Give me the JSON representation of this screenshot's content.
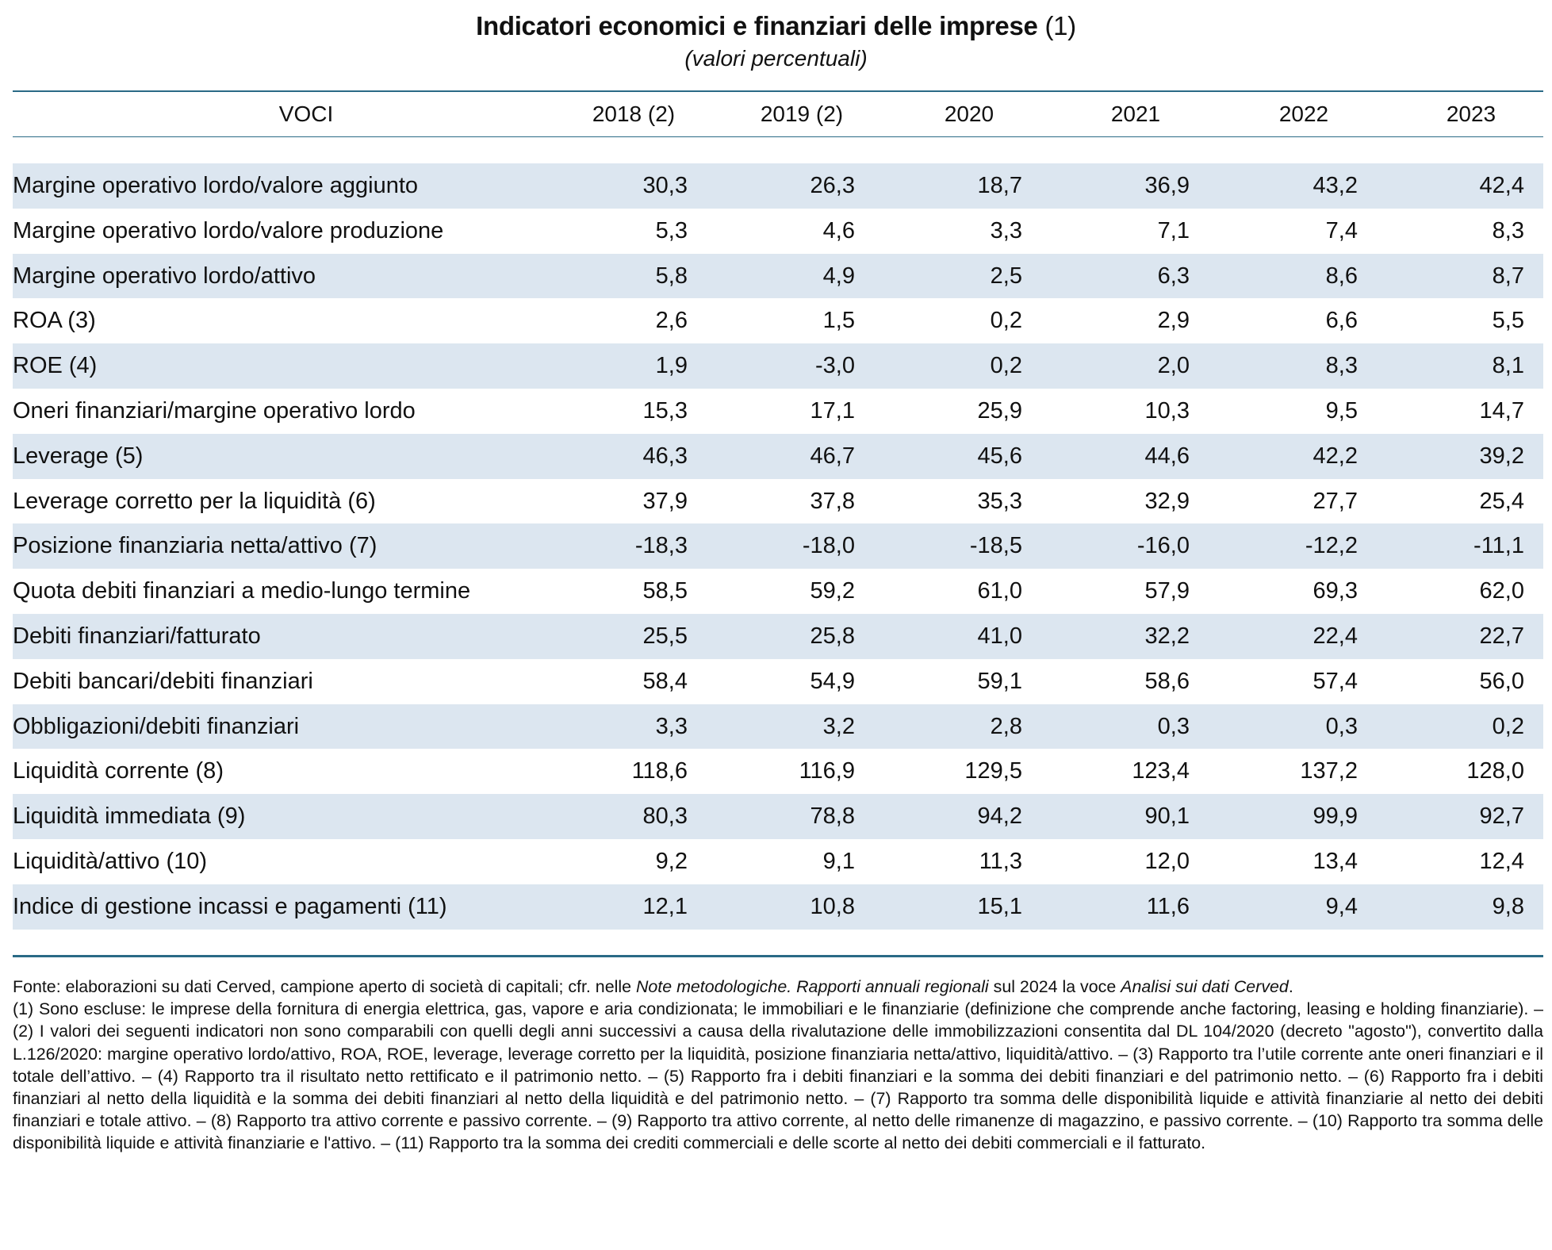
{
  "title": {
    "main": "Indicatori economici e finanziari delle imprese",
    "note": "(1)",
    "subtitle": "(valori percentuali)"
  },
  "table": {
    "columns": [
      "VOCI",
      "2018 (2)",
      "2019 (2)",
      "2020",
      "2021",
      "2022",
      "2023"
    ],
    "rows": [
      {
        "label": "Margine operativo lordo/valore aggiunto",
        "values": [
          "30,3",
          "26,3",
          "18,7",
          "36,9",
          "43,2",
          "42,4"
        ]
      },
      {
        "label": "Margine operativo lordo/valore produzione",
        "values": [
          "5,3",
          "4,6",
          "3,3",
          "7,1",
          "7,4",
          "8,3"
        ]
      },
      {
        "label": "Margine operativo lordo/attivo",
        "values": [
          "5,8",
          "4,9",
          "2,5",
          "6,3",
          "8,6",
          "8,7"
        ]
      },
      {
        "label": "ROA (3)",
        "values": [
          "2,6",
          "1,5",
          "0,2",
          "2,9",
          "6,6",
          "5,5"
        ]
      },
      {
        "label": "ROE (4)",
        "values": [
          "1,9",
          "-3,0",
          "0,2",
          "2,0",
          "8,3",
          "8,1"
        ]
      },
      {
        "label": "Oneri finanziari/margine operativo lordo",
        "values": [
          "15,3",
          "17,1",
          "25,9",
          "10,3",
          "9,5",
          "14,7"
        ]
      },
      {
        "label": "Leverage (5)",
        "values": [
          "46,3",
          "46,7",
          "45,6",
          "44,6",
          "42,2",
          "39,2"
        ]
      },
      {
        "label": "Leverage corretto per la liquidità (6)",
        "values": [
          "37,9",
          "37,8",
          "35,3",
          "32,9",
          "27,7",
          "25,4"
        ]
      },
      {
        "label": "Posizione finanziaria netta/attivo (7)",
        "values": [
          "-18,3",
          "-18,0",
          "-18,5",
          "-16,0",
          "-12,2",
          "-11,1"
        ]
      },
      {
        "label": "Quota debiti finanziari a medio-lungo termine",
        "values": [
          "58,5",
          "59,2",
          "61,0",
          "57,9",
          "69,3",
          "62,0"
        ]
      },
      {
        "label": "Debiti finanziari/fatturato",
        "values": [
          "25,5",
          "25,8",
          "41,0",
          "32,2",
          "22,4",
          "22,7"
        ]
      },
      {
        "label": "Debiti bancari/debiti finanziari",
        "values": [
          "58,4",
          "54,9",
          "59,1",
          "58,6",
          "57,4",
          "56,0"
        ]
      },
      {
        "label": "Obbligazioni/debiti finanziari",
        "values": [
          "3,3",
          "3,2",
          "2,8",
          "0,3",
          "0,3",
          "0,2"
        ]
      },
      {
        "label": "Liquidità corrente (8)",
        "values": [
          "118,6",
          "116,9",
          "129,5",
          "123,4",
          "137,2",
          "128,0"
        ]
      },
      {
        "label": "Liquidità immediata (9)",
        "values": [
          "80,3",
          "78,8",
          "94,2",
          "90,1",
          "99,9",
          "92,7"
        ]
      },
      {
        "label": "Liquidità/attivo (10)",
        "values": [
          "9,2",
          "9,1",
          "11,3",
          "12,0",
          "13,4",
          "12,4"
        ]
      },
      {
        "label": "Indice di gestione incassi e pagamenti (11)",
        "values": [
          "12,1",
          "10,8",
          "15,1",
          "11,6",
          "9,4",
          "9,8"
        ]
      }
    ]
  },
  "colors": {
    "row_shade": "#dce6f0",
    "rule": "#2a6a86"
  },
  "notes": {
    "source_prefix": "Fonte: elaborazioni su dati Cerved, campione aperto di società di capitali; cfr. nelle ",
    "source_italic1": "Note metodologiche. Rapporti annuali regionali",
    "source_mid": " sul 2024 la voce ",
    "source_italic2": "Analisi sui dati Cerved",
    "source_end": ".",
    "footnotes": "(1) Sono escluse: le imprese della fornitura di energia elettrica, gas, vapore e aria condizionata; le immobiliari e le finanziarie (definizione che comprende anche factoring, leasing e holding finanziarie). – (2) I valori dei seguenti indicatori non sono comparabili con quelli degli anni successivi a causa della rivalutazione delle immobilizzazioni consentita dal DL 104/2020 (decreto \"agosto\"), convertito dalla L.126/2020: margine operativo lordo/attivo, ROA, ROE, leverage, leverage corretto per la liquidità, posizione finanziaria netta/attivo, liquidità/attivo. – (3) Rapporto tra l’utile corrente ante oneri finanziari e il totale dell’attivo. – (4) Rapporto tra il risultato netto rettificato e il patrimonio netto. – (5) Rapporto fra i debiti finanziari e la somma dei debiti finanziari e del patrimonio netto. – (6) Rapporto fra i debiti finanziari al netto della liquidità e la somma dei debiti finanziari al netto della liquidità e del patrimonio netto. – (7) Rapporto tra somma delle disponibilità liquide e attività finanziarie al netto dei debiti finanziari e totale attivo. – (8) Rapporto tra attivo corrente e passivo corrente. – (9) Rapporto tra attivo corrente, al netto delle rimanenze di magazzino, e passivo corrente. – (10) Rapporto tra somma delle disponibilità liquide e attività finanziarie e l'attivo. – (11) Rapporto tra la somma dei crediti commerciali e delle scorte al netto dei debiti commerciali e il fatturato."
  }
}
